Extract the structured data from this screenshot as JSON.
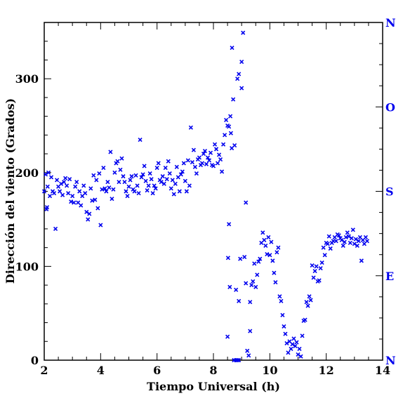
{
  "chart_data": {
    "type": "scatter",
    "xlabel": "Tiempo Universal (h)",
    "ylabel": "Dirección del viento (Grados)",
    "xlim": [
      2,
      14
    ],
    "ylim": [
      0,
      360
    ],
    "x_ticks": [
      "2",
      "4",
      "6",
      "8",
      "10",
      "12",
      "14"
    ],
    "y_ticks": [
      "0",
      "100",
      "200",
      "300"
    ],
    "right_axis_labels": [
      {
        "value": 0,
        "label": "N"
      },
      {
        "value": 90,
        "label": "E"
      },
      {
        "value": 180,
        "label": "S"
      },
      {
        "value": 270,
        "label": "O"
      },
      {
        "value": 360,
        "label": "N"
      }
    ],
    "marker": "x",
    "color": "#0000ee",
    "grid": false,
    "series": [
      {
        "x": [
          2.0,
          2.05,
          2.08,
          2.1,
          2.12,
          2.15,
          2.2,
          2.25,
          2.3,
          2.35,
          2.4,
          2.45,
          2.5,
          2.55,
          2.6,
          2.65,
          2.7,
          2.75,
          2.8,
          2.85,
          2.9,
          2.95,
          3.0,
          3.05,
          3.1,
          3.15,
          3.2,
          3.25,
          3.3,
          3.35,
          3.4,
          3.45,
          3.5,
          3.55,
          3.6,
          3.65,
          3.7,
          3.75,
          3.8,
          3.85,
          3.9,
          3.95,
          4.0,
          4.05,
          4.1,
          4.15,
          4.2,
          4.25,
          4.3,
          4.35,
          4.4,
          4.45,
          4.5,
          4.55,
          4.6,
          4.65,
          4.7,
          4.75,
          4.8,
          4.85,
          4.9,
          4.95,
          5.0,
          5.05,
          5.1,
          5.15,
          5.2,
          5.25,
          5.3,
          5.35,
          5.4,
          5.45,
          5.5,
          5.55,
          5.6,
          5.65,
          5.7,
          5.75,
          5.8,
          5.85,
          5.9,
          5.95,
          6.0,
          6.05,
          6.1,
          6.15,
          6.2,
          6.25,
          6.3,
          6.35,
          6.4,
          6.45,
          6.5,
          6.55,
          6.6,
          6.65,
          6.7,
          6.75,
          6.8,
          6.85,
          6.9,
          6.95,
          7.0,
          7.05,
          7.1,
          7.15,
          7.2,
          7.25,
          7.3,
          7.35,
          7.4,
          7.45,
          7.5,
          7.55,
          7.6,
          7.65,
          7.7,
          7.75,
          7.8,
          7.85,
          7.9,
          7.95,
          8.0,
          8.05,
          8.1,
          8.15,
          8.2,
          8.25,
          8.3,
          8.35,
          8.4,
          8.45,
          8.5,
          8.55,
          8.6,
          8.62,
          8.66,
          8.7,
          8.75,
          8.8,
          8.85,
          8.9,
          8.95,
          9.0,
          8.85,
          8.9,
          9.0,
          9.05,
          9.1,
          9.15,
          9.2,
          9.25,
          9.3,
          9.35,
          9.4,
          9.45,
          9.5,
          9.55,
          9.6,
          9.65,
          9.7,
          9.75,
          9.8,
          9.85,
          9.9,
          9.95,
          10.0,
          10.05,
          10.1,
          10.15,
          10.2,
          10.25,
          10.3,
          10.35,
          10.4,
          10.45,
          10.5,
          10.55,
          10.6,
          10.65,
          10.7,
          10.75,
          10.8,
          10.85,
          10.9,
          10.95,
          11.0,
          11.05,
          11.1,
          11.15,
          11.2,
          11.25,
          11.3,
          11.35,
          11.4,
          11.45,
          11.5,
          11.55,
          11.6,
          11.65,
          11.7,
          11.75,
          11.8,
          11.85,
          11.9,
          11.95,
          12.0,
          12.05,
          12.1,
          12.15,
          12.2,
          12.25,
          12.3,
          12.35,
          12.4,
          12.45,
          12.5,
          12.55,
          12.6,
          12.65,
          12.7,
          12.75,
          12.8,
          12.85,
          12.9,
          12.95,
          13.0,
          13.05,
          13.1,
          13.15,
          13.2,
          13.25,
          13.3,
          13.35,
          13.4,
          13.45,
          8.5,
          8.55,
          8.65,
          8.9,
          9.15,
          9.3,
          8.52,
          8.58,
          8.73,
          8.8
        ],
        "y": [
          180,
          198,
          161,
          163,
          185,
          200,
          175,
          195,
          180,
          178,
          140,
          192,
          185,
          180,
          188,
          176,
          190,
          194,
          186,
          178,
          193,
          169,
          175,
          168,
          185,
          190,
          168,
          180,
          165,
          175,
          186,
          178,
          158,
          150,
          156,
          183,
          170,
          197,
          171,
          192,
          162,
          199,
          144,
          182,
          205,
          183,
          180,
          190,
          184,
          222,
          172,
          182,
          200,
          210,
          212,
          190,
          203,
          215,
          196,
          190,
          180,
          175,
          185,
          192,
          196,
          182,
          180,
          197,
          186,
          178,
          235,
          195,
          198,
          207,
          191,
          181,
          186,
          199,
          193,
          178,
          186,
          183,
          205,
          210,
          192,
          190,
          196,
          188,
          205,
          193,
          212,
          199,
          183,
          192,
          177,
          188,
          206,
          195,
          180,
          198,
          201,
          210,
          191,
          180,
          213,
          186,
          248,
          211,
          224,
          206,
          199,
          214,
          216,
          208,
          210,
          220,
          223,
          209,
          216,
          213,
          221,
          208,
          207,
          230,
          225,
          210,
          219,
          214,
          201,
          230,
          240,
          256,
          250,
          249,
          260,
          242,
          333,
          278,
          229,
          0,
          0,
          0,
          108,
          318,
          300,
          305,
          290,
          349,
          110,
          82,
          10,
          5,
          62,
          80,
          84,
          103,
          78,
          91,
          105,
          108,
          125,
          136,
          128,
          122,
          113,
          131,
          112,
          126,
          106,
          93,
          83,
          115,
          120,
          68,
          63,
          48,
          36,
          28,
          18,
          8,
          20,
          12,
          17,
          23,
          15,
          19,
          6,
          12,
          4,
          26,
          42,
          43,
          62,
          58,
          68,
          64,
          101,
          88,
          95,
          100,
          84,
          85,
          98,
          104,
          120,
          112,
          125,
          124,
          132,
          119,
          125,
          127,
          131,
          127,
          134,
          133,
          130,
          128,
          122,
          126,
          131,
          136,
          132,
          125,
          130,
          139,
          124,
          129,
          122,
          127,
          131,
          106,
          128,
          124,
          131,
          127,
          25,
          145,
          226,
          63,
          168,
          31,
          109,
          78,
          0,
          75
        ]
      }
    ]
  }
}
